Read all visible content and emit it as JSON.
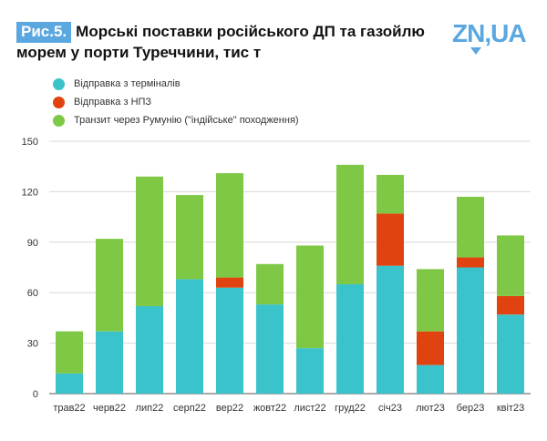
{
  "header": {
    "fig_label": "Рис.5.",
    "title": "Морські поставки російського ДП та газойлю морем у порти Туреччини, тис т",
    "logo_text": "ZN,UA"
  },
  "colors": {
    "badge": "#5ba7e0",
    "terminals": "#3ac3ca",
    "refinery": "#e0430f",
    "transit": "#7ec846",
    "grid": "#d8d8d8"
  },
  "chart_data": {
    "type": "bar",
    "stacked": true,
    "title": "Морські поставки російського ДП та газойлю морем у порти Туреччини, тис т",
    "categories": [
      "трав22",
      "черв22",
      "лип22",
      "серп22",
      "вер22",
      "жовт22",
      "лист22",
      "груд22",
      "січ23",
      "лют23",
      "бер23",
      "квіт23"
    ],
    "series": [
      {
        "name": "Відправка з терміналів",
        "color": "#3ac3ca",
        "values": [
          12,
          37,
          52,
          68,
          63,
          53,
          27,
          65,
          76,
          17,
          75,
          47
        ]
      },
      {
        "name": "Відправка з НПЗ",
        "color": "#e0430f",
        "values": [
          0,
          0,
          0,
          0,
          6,
          0,
          0,
          0,
          31,
          20,
          6,
          11
        ]
      },
      {
        "name": "Транзит через Румунію (\"індійське\" походження)",
        "color": "#7ec846",
        "values": [
          25,
          55,
          77,
          50,
          62,
          24,
          61,
          71,
          23,
          37,
          36,
          36
        ]
      }
    ],
    "ylim": [
      0,
      150
    ],
    "yticks": [
      0,
      30,
      60,
      90,
      120,
      150
    ],
    "grid": true,
    "legend": "top-left"
  }
}
